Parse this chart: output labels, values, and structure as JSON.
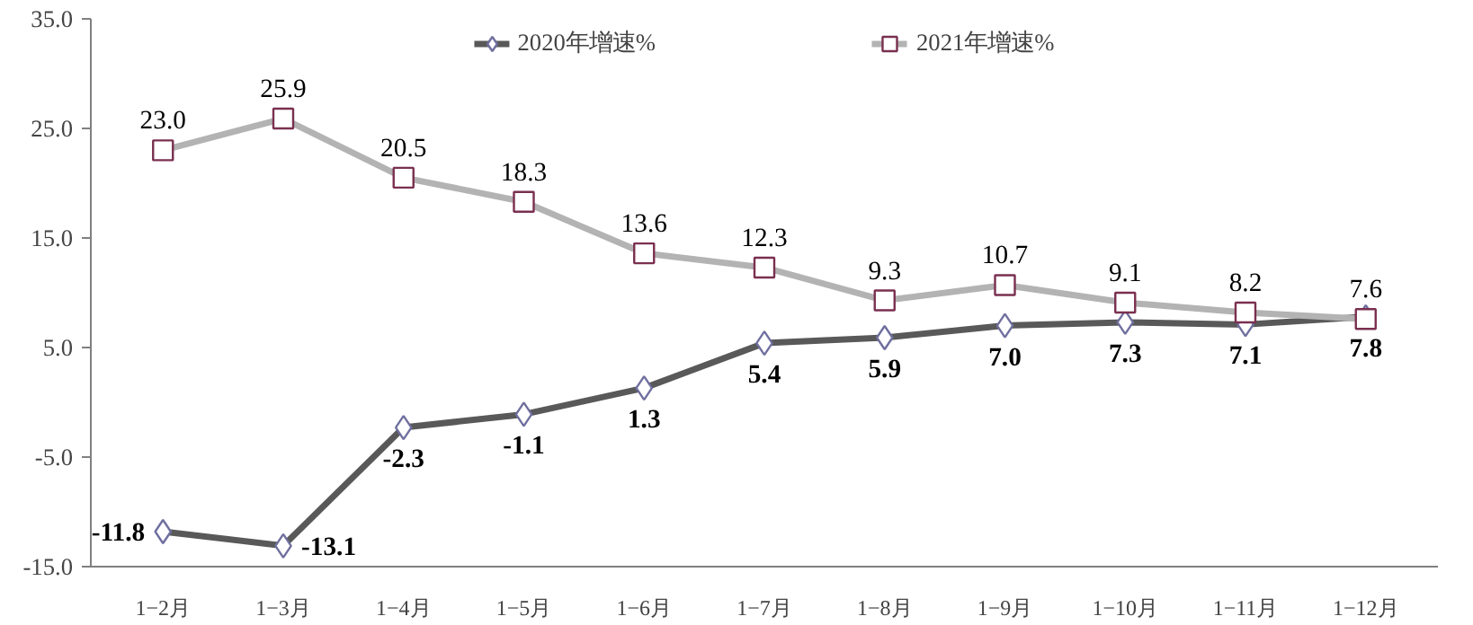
{
  "chart_data": {
    "type": "line",
    "categories": [
      "1−2月",
      "1−3月",
      "1−4月",
      "1−5月",
      "1−6月",
      "1−7月",
      "1−8月",
      "1−9月",
      "1−10月",
      "1−11月",
      "1−12月"
    ],
    "series": [
      {
        "name": "2020年增速%",
        "color": "#595959",
        "marker": "diamond",
        "values": [
          -11.8,
          -13.1,
          -2.3,
          -1.1,
          1.3,
          5.4,
          5.9,
          7.0,
          7.3,
          7.1,
          7.8
        ],
        "value_labels": [
          "-11.8",
          "-13.1",
          "-2.3",
          "-1.1",
          "1.3",
          "5.4",
          "5.9",
          "7.0",
          "7.3",
          "7.1",
          "7.8"
        ]
      },
      {
        "name": "2021年增速%",
        "color": "#b3b3b3",
        "marker": "square",
        "values": [
          23.0,
          25.9,
          20.5,
          18.3,
          13.6,
          12.3,
          9.3,
          10.7,
          9.1,
          8.2,
          7.6
        ],
        "value_labels": [
          "23.0",
          "25.9",
          "20.5",
          "18.3",
          "13.6",
          "12.3",
          "9.3",
          "10.7",
          "9.1",
          "8.2",
          "7.6"
        ]
      }
    ],
    "ylim": [
      -15,
      35
    ],
    "yticks": [
      {
        "value": -15,
        "label": "-15.0"
      },
      {
        "value": -5,
        "label": "-5.0"
      },
      {
        "value": 5,
        "label": "5.0"
      },
      {
        "value": 15,
        "label": "15.0"
      },
      {
        "value": 25,
        "label": "25.0"
      },
      {
        "value": 35,
        "label": "35.0"
      }
    ],
    "grid": false,
    "legend": "top",
    "line_style": "solid"
  }
}
